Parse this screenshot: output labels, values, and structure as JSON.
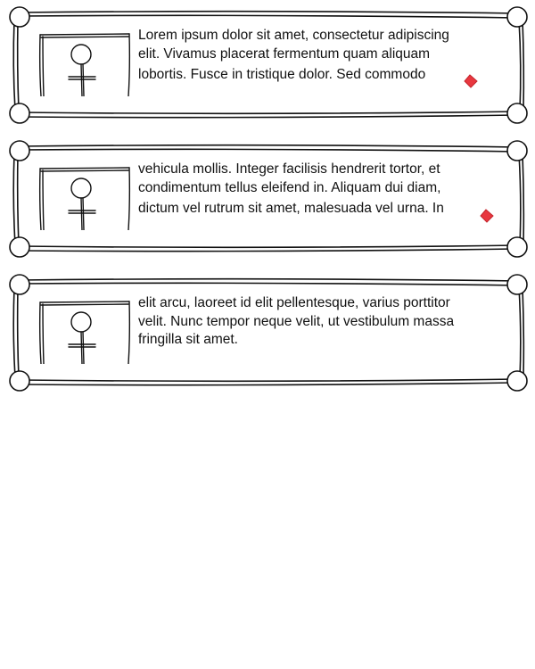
{
  "list": {
    "items": [
      {
        "lines": [
          "Lorem ipsum dolor sit amet, consectetur adipiscing",
          "elit. Vivamus placerat fermentum quam aliquam"
        ],
        "last_line": "lobortis. Fusce in tristique dolor. Sed commodo",
        "has_marker": true,
        "marker_color": "#e8373f"
      },
      {
        "lines": [
          "vehicula mollis. Integer facilisis hendrerit tortor, et",
          "condimentum tellus eleifend in. Aliquam dui diam,"
        ],
        "last_line": "dictum vel rutrum sit amet, malesuada vel urna. In",
        "has_marker": true,
        "marker_color": "#e8373f"
      },
      {
        "lines": [
          "elit arcu, laoreet id elit pellentesque, varius porttitor",
          "velit. Nunc tempor neque velit, ut vestibulum massa"
        ],
        "last_line": "fringilla sit amet.",
        "has_marker": false,
        "marker_color": "#e8373f"
      }
    ]
  }
}
